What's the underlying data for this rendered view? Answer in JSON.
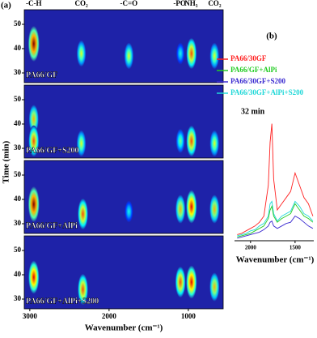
{
  "chart_data": [
    {
      "type": "heatmap",
      "label": "(a)",
      "xlabel": "Wavenumber (cm⁻¹)",
      "ylabel": "Time (min)",
      "xlim": [
        3070,
        560
      ],
      "xticks": [
        3000,
        2000,
        1000
      ],
      "ylim": [
        26,
        56
      ],
      "yticks": [
        30,
        40,
        50
      ],
      "background": "#1e22a8",
      "annotations": [
        {
          "text": "-C-H",
          "x": 2950
        },
        {
          "text": "CO₂",
          "x": 2350
        },
        {
          "text": "-C=O",
          "x": 1750
        },
        {
          "text": "-PO",
          "x": 1110
        },
        {
          "text": "NH₃",
          "x": 965
        },
        {
          "text": "CO₂",
          "x": 668
        }
      ],
      "panels": [
        {
          "name": "PA66/GF",
          "x": [
            2950,
            2350,
            1750,
            1100,
            960,
            670
          ],
          "y": [
            42,
            38,
            37,
            38,
            38,
            37
          ],
          "values": [
            1,
            0.6,
            0.6,
            0.4,
            0.8,
            0.6
          ]
        },
        {
          "name": "PA66/GF+S200",
          "x": [
            2950,
            2950,
            2350,
            1100,
            960,
            670
          ],
          "y": [
            42,
            33,
            32,
            33,
            33,
            32
          ],
          "values": [
            0.7,
            0.8,
            0.6,
            0.5,
            0.8,
            0.6
          ]
        },
        {
          "name": "PA66/GF+AlPi",
          "x": [
            2950,
            2330,
            1750,
            1100,
            960,
            670
          ],
          "y": [
            38,
            34,
            35,
            36,
            37,
            36
          ],
          "values": [
            1,
            0.8,
            0.4,
            0.7,
            0.9,
            0.7
          ]
        },
        {
          "name": "PA66/GF+AlPi+S200",
          "x": [
            2950,
            2330,
            1100,
            960,
            670
          ],
          "y": [
            39,
            34,
            37,
            37,
            35
          ],
          "values": [
            0.9,
            0.8,
            0.8,
            0.9,
            0.7
          ]
        }
      ]
    },
    {
      "type": "line",
      "label": "(b)",
      "annotation": "32 min",
      "xlabel": "Wavenumber (cm⁻¹)",
      "xlim": [
        2180,
        1290
      ],
      "xticks": [
        2000,
        1500
      ],
      "ylim": [
        0,
        1
      ],
      "x": [
        2150,
        2100,
        2050,
        2000,
        1950,
        1900,
        1850,
        1800,
        1780,
        1760,
        1740,
        1700,
        1650,
        1600,
        1550,
        1500,
        1450,
        1400,
        1350,
        1300
      ],
      "series": [
        {
          "name": "PA66/30GF",
          "color": "#ff2020",
          "values": [
            0.05,
            0.06,
            0.08,
            0.1,
            0.12,
            0.15,
            0.2,
            0.45,
            0.8,
            0.95,
            0.5,
            0.25,
            0.3,
            0.35,
            0.4,
            0.55,
            0.45,
            0.35,
            0.3,
            0.2
          ]
        },
        {
          "name": "PA66/GF+AlPi",
          "color": "#22cc22",
          "values": [
            0.03,
            0.04,
            0.05,
            0.06,
            0.08,
            0.1,
            0.12,
            0.18,
            0.25,
            0.28,
            0.2,
            0.15,
            0.18,
            0.2,
            0.22,
            0.3,
            0.25,
            0.2,
            0.18,
            0.15
          ]
        },
        {
          "name": "PA66/30GF+S200",
          "color": "#3a2ad0",
          "values": [
            0.02,
            0.03,
            0.04,
            0.05,
            0.06,
            0.07,
            0.09,
            0.12,
            0.15,
            0.16,
            0.12,
            0.1,
            0.12,
            0.14,
            0.15,
            0.2,
            0.18,
            0.15,
            0.12,
            0.1
          ]
        },
        {
          "name": "PA66/30GF+AlPi+S200",
          "color": "#20d8d8",
          "values": [
            0.04,
            0.05,
            0.06,
            0.08,
            0.09,
            0.12,
            0.14,
            0.2,
            0.3,
            0.32,
            0.22,
            0.16,
            0.2,
            0.22,
            0.24,
            0.32,
            0.28,
            0.22,
            0.2,
            0.16
          ]
        }
      ]
    }
  ]
}
